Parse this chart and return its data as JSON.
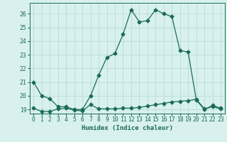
{
  "line1_x": [
    0,
    1,
    2,
    3,
    4,
    5,
    6,
    7,
    8,
    9,
    10,
    11,
    12,
    13,
    14,
    15,
    16,
    17,
    18,
    19,
    20,
    21,
    22,
    23
  ],
  "line1_y": [
    21.0,
    20.0,
    19.8,
    19.2,
    19.2,
    19.0,
    19.0,
    20.0,
    21.5,
    22.8,
    23.1,
    24.5,
    26.3,
    25.4,
    25.5,
    26.3,
    26.0,
    25.8,
    23.3,
    23.2,
    19.7,
    19.0,
    19.3,
    19.1
  ],
  "line2_x": [
    0,
    1,
    2,
    3,
    4,
    5,
    6,
    7,
    8,
    9,
    10,
    11,
    12,
    13,
    14,
    15,
    16,
    17,
    18,
    19,
    20,
    21,
    22,
    23
  ],
  "line2_y": [
    19.1,
    18.85,
    18.85,
    19.05,
    19.1,
    18.95,
    18.9,
    19.35,
    19.05,
    19.05,
    19.05,
    19.1,
    19.1,
    19.15,
    19.25,
    19.35,
    19.45,
    19.55,
    19.6,
    19.65,
    19.75,
    19.05,
    19.2,
    19.05
  ],
  "line_color": "#1a6b5a",
  "bg_color": "#d8f0ee",
  "grid_color": "#b8dcd8",
  "xlabel": "Humidex (Indice chaleur)",
  "ylim_min": 18.7,
  "ylim_max": 26.8,
  "xlim_min": -0.5,
  "xlim_max": 23.5,
  "yticks": [
    19,
    20,
    21,
    22,
    23,
    24,
    25,
    26
  ],
  "xticks": [
    0,
    1,
    2,
    3,
    4,
    5,
    6,
    7,
    8,
    9,
    10,
    11,
    12,
    13,
    14,
    15,
    16,
    17,
    18,
    19,
    20,
    21,
    22,
    23
  ],
  "marker": "D",
  "markersize": 2.5,
  "linewidth": 0.9,
  "tick_fontsize": 5.8,
  "xlabel_fontsize": 6.5
}
